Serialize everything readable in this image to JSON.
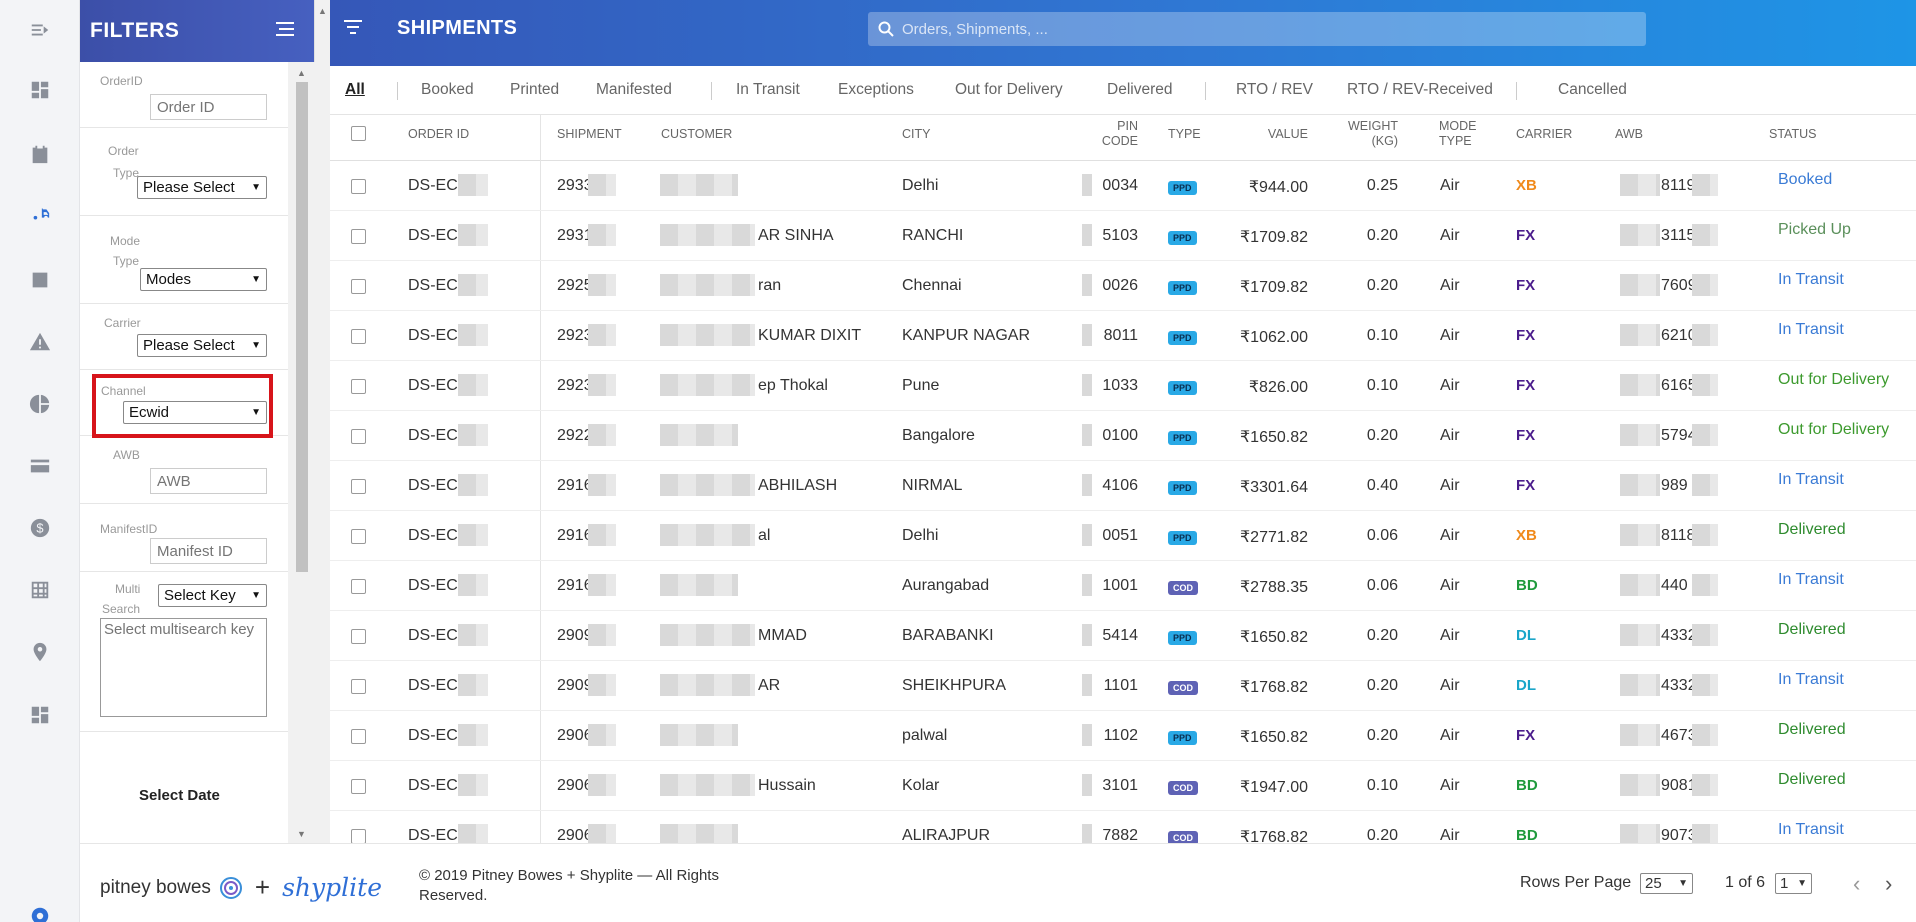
{
  "filters": {
    "title": "FILTERS",
    "order_id": {
      "label": "OrderID",
      "placeholder": "Order ID"
    },
    "order_type": {
      "label_1": "Order",
      "label_2": "Type",
      "value": "Please Select"
    },
    "mode_type": {
      "label_1": "Mode",
      "label_2": "Type",
      "value": "Modes"
    },
    "carrier": {
      "label": "Carrier",
      "value": "Please Select"
    },
    "channel": {
      "label": "Channel",
      "value": "Ecwid"
    },
    "awb": {
      "label": "AWB",
      "placeholder": "AWB"
    },
    "manifest": {
      "label": "ManifestID",
      "placeholder": "Manifest ID"
    },
    "multi": {
      "label_1": "Multi",
      "label_2": "Search",
      "value": "Select Key",
      "placeholder": "Select multisearch key"
    },
    "date_label": "Select Date"
  },
  "header": {
    "title": "SHIPMENTS",
    "search_placeholder": "Orders, Shipments, ..."
  },
  "tabs": [
    "All",
    "Booked",
    "Printed",
    "Manifested",
    "In Transit",
    "Exceptions",
    "Out for Delivery",
    "Delivered",
    "RTO / REV",
    "RTO / REV-Received",
    "Cancelled"
  ],
  "columns": {
    "order_id": "ORDER ID",
    "shipment": "SHIPMENT",
    "customer": "CUSTOMER",
    "city": "CITY",
    "pin_1": "PIN",
    "pin_2": "CODE",
    "type": "TYPE",
    "value": "VALUE",
    "weight_1": "WEIGHT",
    "weight_2": "(KG)",
    "mode_1": "MODE",
    "mode_2": "TYPE",
    "carrier": "CARRIER",
    "awb": "AWB",
    "status": "STATUS"
  },
  "rows": [
    {
      "order": "DS-EC-",
      "ship": "2933",
      "cust": "",
      "city": "Delhi",
      "pin": "0034",
      "type": "PPD",
      "value": "₹944.00",
      "weight": "0.25",
      "mode": "Air",
      "carrier": "XB",
      "awb": "8119",
      "status": "Booked"
    },
    {
      "order": "DS-EC-",
      "ship": "2931",
      "cust": "AR SINHA",
      "city": "RANCHI",
      "pin": "5103",
      "type": "PPD",
      "value": "₹1709.82",
      "weight": "0.20",
      "mode": "Air",
      "carrier": "FX",
      "awb": "3115",
      "status": "Picked Up"
    },
    {
      "order": "DS-EC-",
      "ship": "2925",
      "cust": "ran",
      "city": "Chennai",
      "pin": "0026",
      "type": "PPD",
      "value": "₹1709.82",
      "weight": "0.20",
      "mode": "Air",
      "carrier": "FX",
      "awb": "7609",
      "status": "In Transit"
    },
    {
      "order": "DS-EC-(",
      "ship": "2923",
      "cust": "KUMAR DIXIT",
      "city": "KANPUR NAGAR",
      "pin": "8011",
      "type": "PPD",
      "value": "₹1062.00",
      "weight": "0.10",
      "mode": "Air",
      "carrier": "FX",
      "awb": "6210",
      "status": "In Transit"
    },
    {
      "order": "DS-EC-",
      "ship": "2923",
      "cust": "ep Thokal",
      "city": "Pune",
      "pin": "1033",
      "type": "PPD",
      "value": "₹826.00",
      "weight": "0.10",
      "mode": "Air",
      "carrier": "FX",
      "awb": "6165",
      "status": "Out for Delivery"
    },
    {
      "order": "DS-EC-",
      "ship": "2922",
      "cust": "",
      "city": "Bangalore",
      "pin": "0100",
      "type": "PPD",
      "value": "₹1650.82",
      "weight": "0.20",
      "mode": "Air",
      "carrier": "FX",
      "awb": "5794",
      "status": "Out for Delivery"
    },
    {
      "order": "DS-EC-",
      "ship": "2916",
      "cust": "ABHILASH",
      "city": "NIRMAL",
      "pin": "4106",
      "type": "PPD",
      "value": "₹3301.64",
      "weight": "0.40",
      "mode": "Air",
      "carrier": "FX",
      "awb": "989",
      "status": "In Transit"
    },
    {
      "order": "DS-EC-",
      "ship": "2916",
      "cust": "al",
      "city": "Delhi",
      "pin": "0051",
      "type": "PPD",
      "value": "₹2771.82",
      "weight": "0.06",
      "mode": "Air",
      "carrier": "XB",
      "awb": "8118",
      "status": "Delivered"
    },
    {
      "order": "DS-EC-",
      "ship": "2916",
      "cust": "",
      "city": "Aurangabad",
      "pin": "1001",
      "type": "COD",
      "value": "₹2788.35",
      "weight": "0.06",
      "mode": "Air",
      "carrier": "BD",
      "awb": "440",
      "status": "In Transit"
    },
    {
      "order": "DS-EC-",
      "ship": "2909",
      "cust": "MMAD",
      "city": "BARABANKI",
      "pin": "5414",
      "type": "PPD",
      "value": "₹1650.82",
      "weight": "0.20",
      "mode": "Air",
      "carrier": "DL",
      "awb": "4332",
      "status": "Delivered"
    },
    {
      "order": "DS-EC-",
      "ship": "2909",
      "cust": "AR",
      "city": "SHEIKHPURA",
      "pin": "1101",
      "type": "COD",
      "value": "₹1768.82",
      "weight": "0.20",
      "mode": "Air",
      "carrier": "DL",
      "awb": "4332",
      "status": "In Transit"
    },
    {
      "order": "DS-EC-",
      "ship": "2906",
      "cust": "",
      "city": "palwal",
      "pin": "1102",
      "type": "PPD",
      "value": "₹1650.82",
      "weight": "0.20",
      "mode": "Air",
      "carrier": "FX",
      "awb": "4673",
      "status": "Delivered"
    },
    {
      "order": "DS-EC-",
      "ship": "2906",
      "cust": "Hussain",
      "city": "Kolar",
      "pin": "3101",
      "type": "COD",
      "value": "₹1947.00",
      "weight": "0.10",
      "mode": "Air",
      "carrier": "BD",
      "awb": "9081",
      "status": "Delivered"
    },
    {
      "order": "DS-EC-",
      "ship": "2906",
      "cust": "",
      "city": "ALIRAJPUR",
      "pin": "7882",
      "type": "COD",
      "value": "₹1768.82",
      "weight": "0.20",
      "mode": "Air",
      "carrier": "BD",
      "awb": "9073",
      "status": "In Transit"
    }
  ],
  "colors": {
    "carrier": {
      "XB": "#f08a1c",
      "FX": "#4b1c8c",
      "BD": "#1f9a3c",
      "DL": "#1aa6c9"
    },
    "status": {
      "Booked": "#3a7bd5",
      "Picked Up": "#5a8f5a",
      "In Transit": "#3a7bd5",
      "Out for Delivery": "#3d9a2e",
      "Delivered": "#2e8b2e"
    },
    "highlight": "#d7141a"
  },
  "footer": {
    "brand_left": "pitney bowes",
    "plus": "+",
    "brand_right": "shyplite",
    "copyright": "© 2019 Pitney Bowes + Shyplite — All Rights Reserved.",
    "rows_per_page_label": "Rows Per Page",
    "rows_per_page": "25",
    "page_of": "1 of 6",
    "page": "1"
  }
}
